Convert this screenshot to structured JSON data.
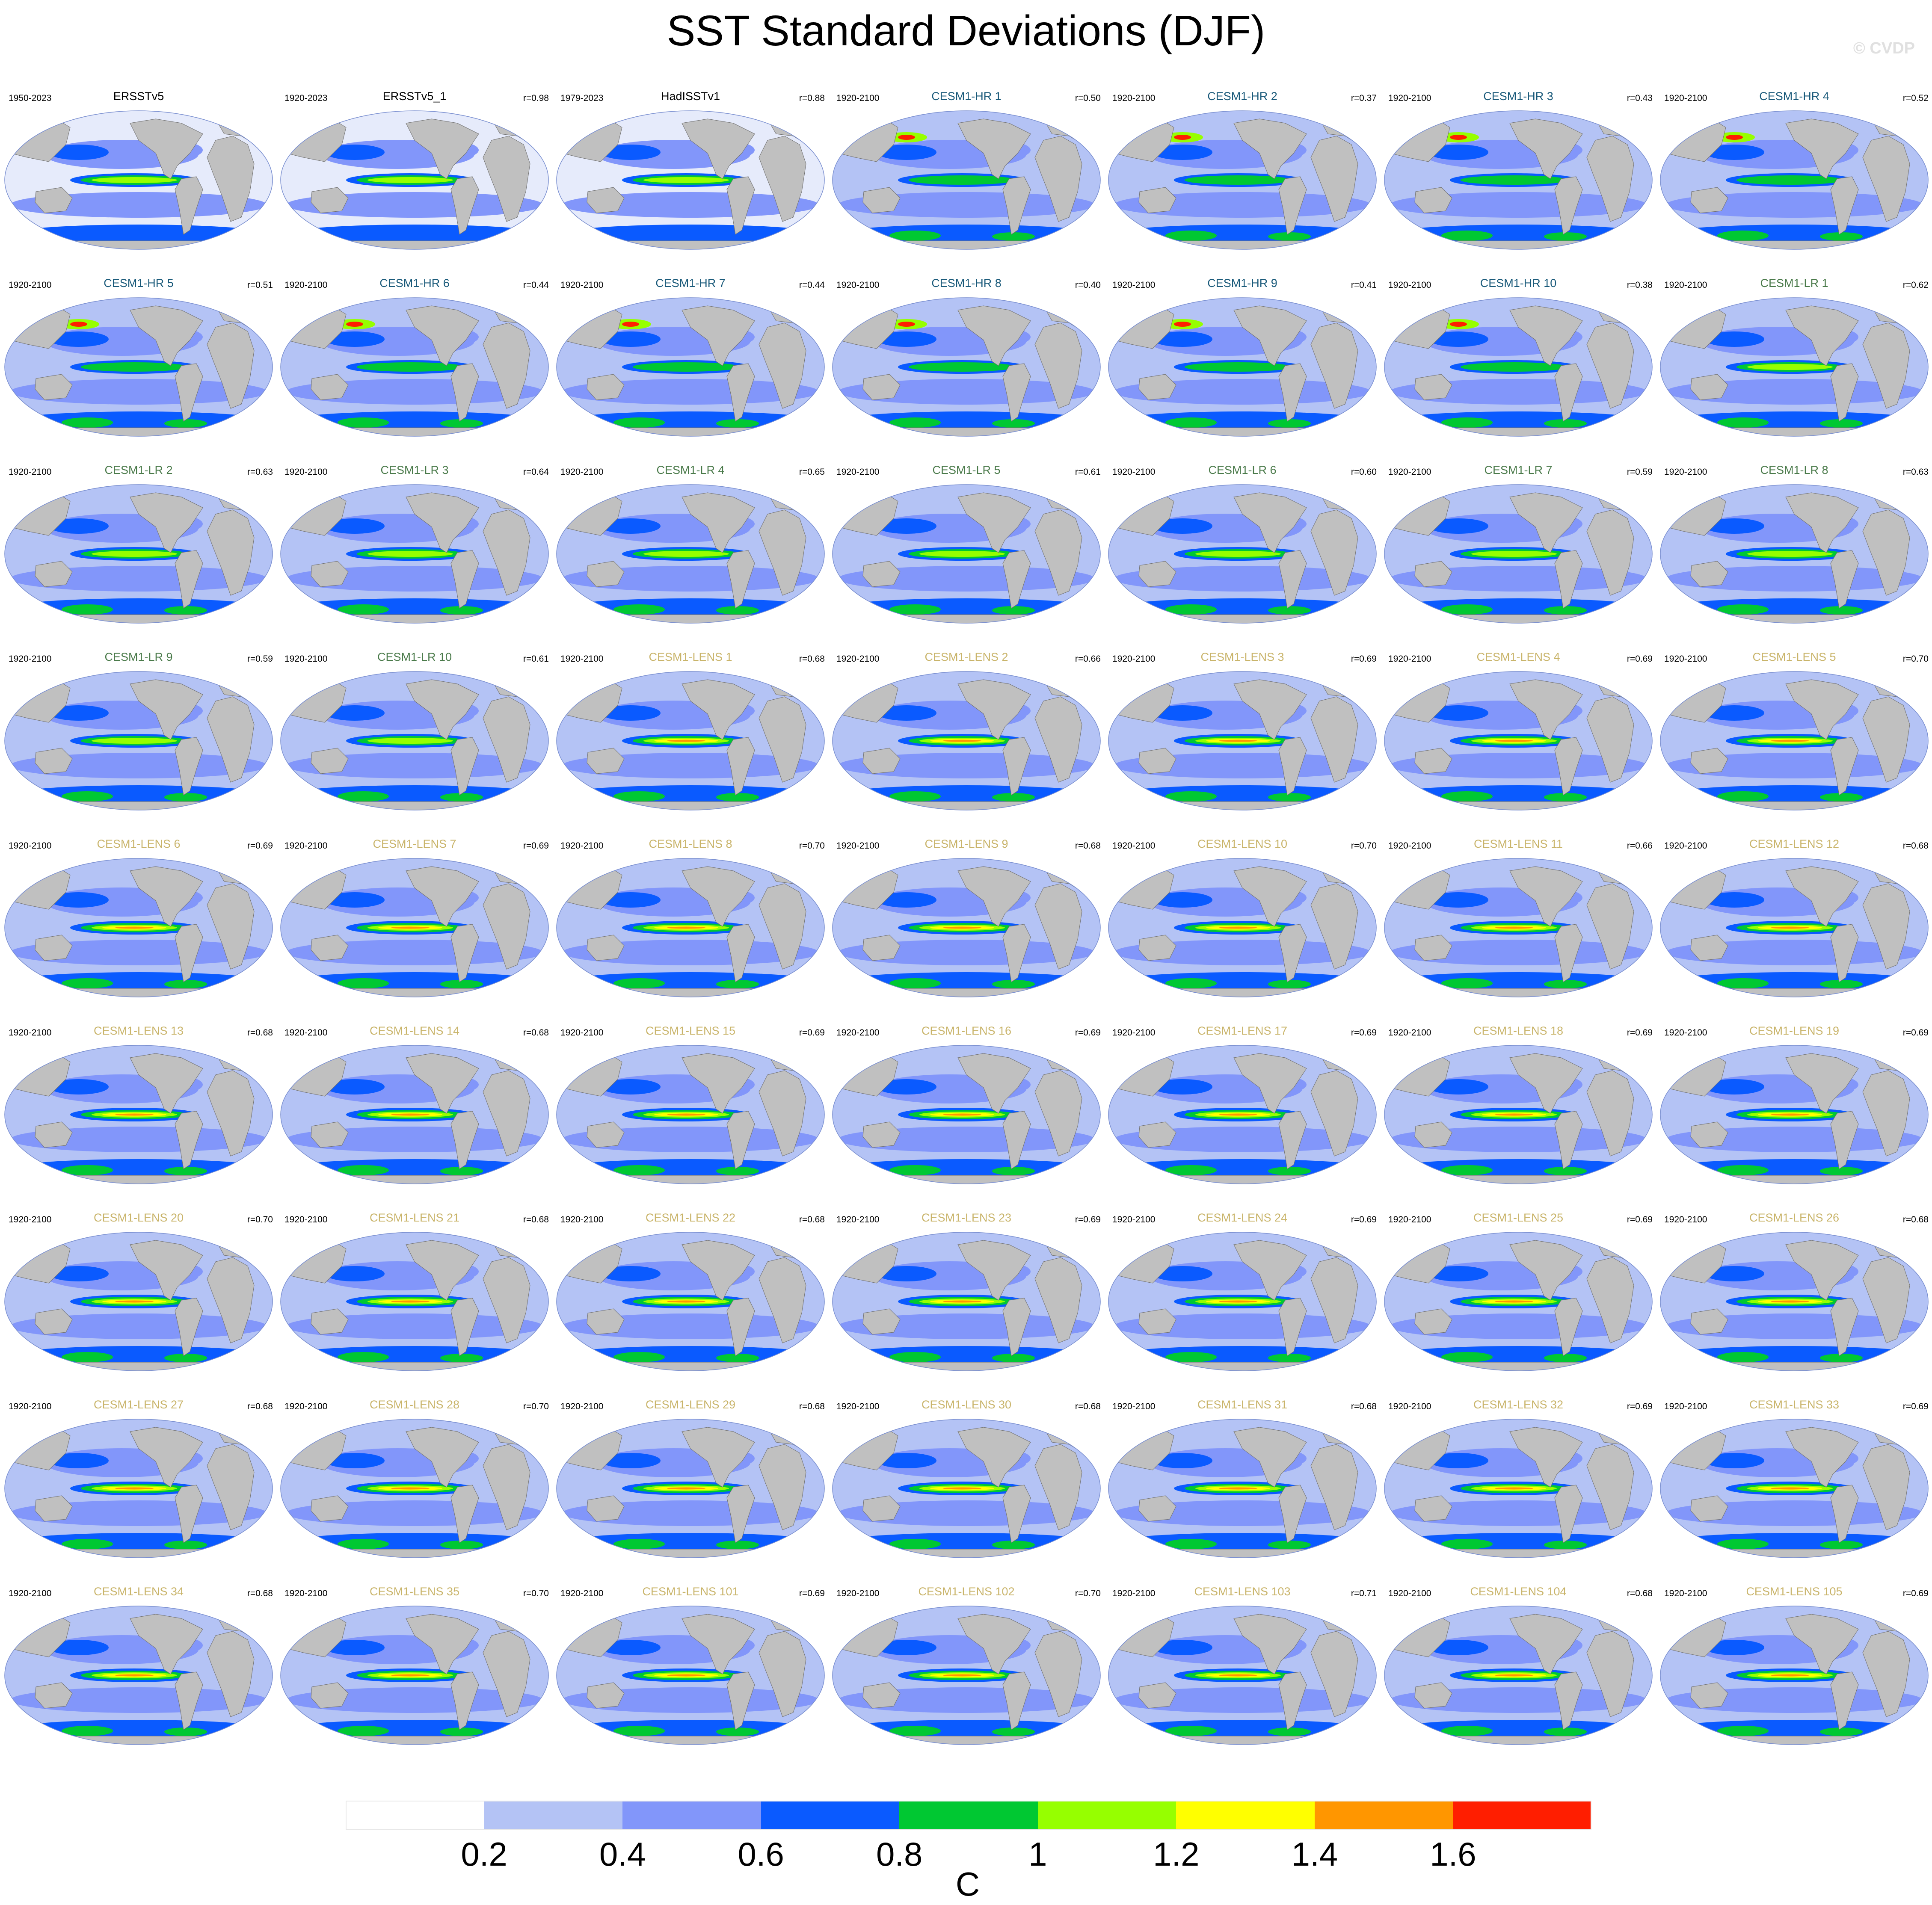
{
  "title": "SST Standard Deviations (DJF)",
  "watermark": "© CVDP",
  "colors": {
    "land": "#c0c0c0",
    "title_obs": "#000000",
    "title_hr": "#1a5a7a",
    "title_lr": "#4a7a4a",
    "title_lens": "#c9b46a"
  },
  "panels": [
    {
      "title": "ERSSTv5",
      "years": "1950-2023",
      "r": "",
      "group": "obs"
    },
    {
      "title": "ERSSTv5_1",
      "years": "1920-2023",
      "r": "r=0.98",
      "group": "obs"
    },
    {
      "title": "HadISSTv1",
      "years": "1979-2023",
      "r": "r=0.88",
      "group": "obs"
    },
    {
      "title": "CESM1-HR 1",
      "years": "1920-2100",
      "r": "r=0.50",
      "group": "hr"
    },
    {
      "title": "CESM1-HR 2",
      "years": "1920-2100",
      "r": "r=0.37",
      "group": "hr"
    },
    {
      "title": "CESM1-HR 3",
      "years": "1920-2100",
      "r": "r=0.43",
      "group": "hr"
    },
    {
      "title": "CESM1-HR 4",
      "years": "1920-2100",
      "r": "r=0.52",
      "group": "hr"
    },
    {
      "title": "CESM1-HR 5",
      "years": "1920-2100",
      "r": "r=0.51",
      "group": "hr"
    },
    {
      "title": "CESM1-HR 6",
      "years": "1920-2100",
      "r": "r=0.44",
      "group": "hr"
    },
    {
      "title": "CESM1-HR 7",
      "years": "1920-2100",
      "r": "r=0.44",
      "group": "hr"
    },
    {
      "title": "CESM1-HR 8",
      "years": "1920-2100",
      "r": "r=0.40",
      "group": "hr"
    },
    {
      "title": "CESM1-HR 9",
      "years": "1920-2100",
      "r": "r=0.41",
      "group": "hr"
    },
    {
      "title": "CESM1-HR 10",
      "years": "1920-2100",
      "r": "r=0.38",
      "group": "hr"
    },
    {
      "title": "CESM1-LR 1",
      "years": "1920-2100",
      "r": "r=0.62",
      "group": "lr"
    },
    {
      "title": "CESM1-LR 2",
      "years": "1920-2100",
      "r": "r=0.63",
      "group": "lr"
    },
    {
      "title": "CESM1-LR 3",
      "years": "1920-2100",
      "r": "r=0.64",
      "group": "lr"
    },
    {
      "title": "CESM1-LR 4",
      "years": "1920-2100",
      "r": "r=0.65",
      "group": "lr"
    },
    {
      "title": "CESM1-LR 5",
      "years": "1920-2100",
      "r": "r=0.61",
      "group": "lr"
    },
    {
      "title": "CESM1-LR 6",
      "years": "1920-2100",
      "r": "r=0.60",
      "group": "lr"
    },
    {
      "title": "CESM1-LR 7",
      "years": "1920-2100",
      "r": "r=0.59",
      "group": "lr"
    },
    {
      "title": "CESM1-LR 8",
      "years": "1920-2100",
      "r": "r=0.63",
      "group": "lr"
    },
    {
      "title": "CESM1-LR 9",
      "years": "1920-2100",
      "r": "r=0.59",
      "group": "lr"
    },
    {
      "title": "CESM1-LR 10",
      "years": "1920-2100",
      "r": "r=0.61",
      "group": "lr"
    },
    {
      "title": "CESM1-LENS 1",
      "years": "1920-2100",
      "r": "r=0.68",
      "group": "lens"
    },
    {
      "title": "CESM1-LENS 2",
      "years": "1920-2100",
      "r": "r=0.66",
      "group": "lens"
    },
    {
      "title": "CESM1-LENS 3",
      "years": "1920-2100",
      "r": "r=0.69",
      "group": "lens"
    },
    {
      "title": "CESM1-LENS 4",
      "years": "1920-2100",
      "r": "r=0.69",
      "group": "lens"
    },
    {
      "title": "CESM1-LENS 5",
      "years": "1920-2100",
      "r": "r=0.70",
      "group": "lens"
    },
    {
      "title": "CESM1-LENS 6",
      "years": "1920-2100",
      "r": "r=0.69",
      "group": "lens"
    },
    {
      "title": "CESM1-LENS 7",
      "years": "1920-2100",
      "r": "r=0.69",
      "group": "lens"
    },
    {
      "title": "CESM1-LENS 8",
      "years": "1920-2100",
      "r": "r=0.70",
      "group": "lens"
    },
    {
      "title": "CESM1-LENS 9",
      "years": "1920-2100",
      "r": "r=0.68",
      "group": "lens"
    },
    {
      "title": "CESM1-LENS 10",
      "years": "1920-2100",
      "r": "r=0.70",
      "group": "lens"
    },
    {
      "title": "CESM1-LENS 11",
      "years": "1920-2100",
      "r": "r=0.66",
      "group": "lens"
    },
    {
      "title": "CESM1-LENS 12",
      "years": "1920-2100",
      "r": "r=0.68",
      "group": "lens"
    },
    {
      "title": "CESM1-LENS 13",
      "years": "1920-2100",
      "r": "r=0.68",
      "group": "lens"
    },
    {
      "title": "CESM1-LENS 14",
      "years": "1920-2100",
      "r": "r=0.68",
      "group": "lens"
    },
    {
      "title": "CESM1-LENS 15",
      "years": "1920-2100",
      "r": "r=0.69",
      "group": "lens"
    },
    {
      "title": "CESM1-LENS 16",
      "years": "1920-2100",
      "r": "r=0.69",
      "group": "lens"
    },
    {
      "title": "CESM1-LENS 17",
      "years": "1920-2100",
      "r": "r=0.69",
      "group": "lens"
    },
    {
      "title": "CESM1-LENS 18",
      "years": "1920-2100",
      "r": "r=0.69",
      "group": "lens"
    },
    {
      "title": "CESM1-LENS 19",
      "years": "1920-2100",
      "r": "r=0.69",
      "group": "lens"
    },
    {
      "title": "CESM1-LENS 20",
      "years": "1920-2100",
      "r": "r=0.70",
      "group": "lens"
    },
    {
      "title": "CESM1-LENS 21",
      "years": "1920-2100",
      "r": "r=0.68",
      "group": "lens"
    },
    {
      "title": "CESM1-LENS 22",
      "years": "1920-2100",
      "r": "r=0.68",
      "group": "lens"
    },
    {
      "title": "CESM1-LENS 23",
      "years": "1920-2100",
      "r": "r=0.69",
      "group": "lens"
    },
    {
      "title": "CESM1-LENS 24",
      "years": "1920-2100",
      "r": "r=0.69",
      "group": "lens"
    },
    {
      "title": "CESM1-LENS 25",
      "years": "1920-2100",
      "r": "r=0.69",
      "group": "lens"
    },
    {
      "title": "CESM1-LENS 26",
      "years": "1920-2100",
      "r": "r=0.68",
      "group": "lens"
    },
    {
      "title": "CESM1-LENS 27",
      "years": "1920-2100",
      "r": "r=0.68",
      "group": "lens"
    },
    {
      "title": "CESM1-LENS 28",
      "years": "1920-2100",
      "r": "r=0.70",
      "group": "lens"
    },
    {
      "title": "CESM1-LENS 29",
      "years": "1920-2100",
      "r": "r=0.68",
      "group": "lens"
    },
    {
      "title": "CESM1-LENS 30",
      "years": "1920-2100",
      "r": "r=0.68",
      "group": "lens"
    },
    {
      "title": "CESM1-LENS 31",
      "years": "1920-2100",
      "r": "r=0.68",
      "group": "lens"
    },
    {
      "title": "CESM1-LENS 32",
      "years": "1920-2100",
      "r": "r=0.69",
      "group": "lens"
    },
    {
      "title": "CESM1-LENS 33",
      "years": "1920-2100",
      "r": "r=0.69",
      "group": "lens"
    },
    {
      "title": "CESM1-LENS 34",
      "years": "1920-2100",
      "r": "r=0.68",
      "group": "lens"
    },
    {
      "title": "CESM1-LENS 35",
      "years": "1920-2100",
      "r": "r=0.70",
      "group": "lens"
    },
    {
      "title": "CESM1-LENS 101",
      "years": "1920-2100",
      "r": "r=0.69",
      "group": "lens"
    },
    {
      "title": "CESM1-LENS 102",
      "years": "1920-2100",
      "r": "r=0.70",
      "group": "lens"
    },
    {
      "title": "CESM1-LENS 103",
      "years": "1920-2100",
      "r": "r=0.71",
      "group": "lens"
    },
    {
      "title": "CESM1-LENS 104",
      "years": "1920-2100",
      "r": "r=0.68",
      "group": "lens"
    },
    {
      "title": "CESM1-LENS 105",
      "years": "1920-2100",
      "r": "r=0.69",
      "group": "lens"
    }
  ],
  "colorbar": {
    "unit": "C",
    "labels": [
      "0.2",
      "0.4",
      "0.6",
      "0.8",
      "1",
      "1.2",
      "1.4",
      "1.6"
    ],
    "colors": [
      "#ffffff",
      "#b4c3f5",
      "#8296fa",
      "#0a5aff",
      "#00c832",
      "#96ff00",
      "#ffff00",
      "#ff9600",
      "#ff1e00"
    ]
  }
}
